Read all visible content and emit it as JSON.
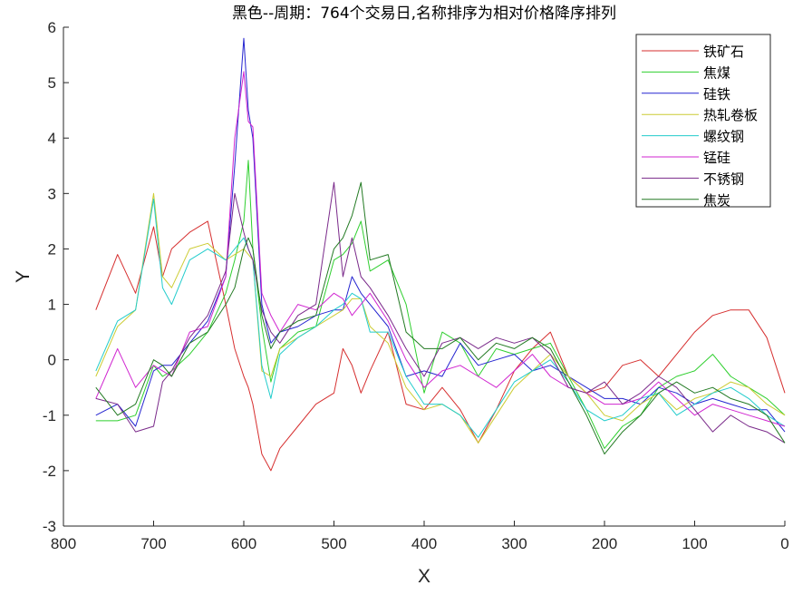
{
  "chart_data": {
    "type": "line",
    "title": "黑色--周期：764个交易日,名称排序为相对价格降序排列",
    "xlabel": "X",
    "ylabel": "Y",
    "xlim": [
      800,
      0
    ],
    "x_reversed": true,
    "ylim": [
      -3,
      6
    ],
    "xticks": [
      "800",
      "700",
      "600",
      "500",
      "400",
      "300",
      "200",
      "100",
      "0"
    ],
    "yticks": [
      "-3",
      "-2",
      "-1",
      "0",
      "1",
      "2",
      "3",
      "4",
      "5",
      "6"
    ],
    "grid": false,
    "legend_position": "top-right",
    "x": [
      764,
      740,
      720,
      700,
      690,
      680,
      660,
      640,
      620,
      610,
      600,
      595,
      590,
      580,
      570,
      560,
      540,
      520,
      500,
      490,
      480,
      470,
      460,
      440,
      420,
      400,
      380,
      360,
      340,
      320,
      300,
      280,
      260,
      240,
      220,
      200,
      180,
      160,
      140,
      120,
      100,
      80,
      60,
      40,
      20,
      0
    ],
    "series": [
      {
        "name": "铁矿石",
        "color": "#d62f2f",
        "values": [
          0.9,
          1.9,
          1.2,
          2.4,
          1.5,
          2.0,
          2.3,
          2.5,
          1.0,
          0.2,
          -0.3,
          -0.5,
          -0.8,
          -1.7,
          -2.0,
          -1.6,
          -1.2,
          -0.8,
          -0.6,
          0.2,
          -0.1,
          -0.6,
          -0.2,
          0.5,
          -0.8,
          -0.9,
          -0.5,
          -0.9,
          -1.5,
          -0.9,
          -0.2,
          0.2,
          0.5,
          -0.3,
          -0.6,
          -0.5,
          -0.1,
          0.0,
          -0.3,
          0.1,
          0.5,
          0.8,
          0.9,
          0.9,
          0.4,
          -0.6
        ]
      },
      {
        "name": "焦煤",
        "color": "#2fcf2f",
        "values": [
          -1.1,
          -1.1,
          -1.0,
          -0.1,
          -0.3,
          -0.2,
          0.1,
          0.5,
          1.2,
          1.8,
          2.5,
          3.6,
          2.0,
          0.6,
          -0.4,
          0.2,
          0.5,
          0.6,
          1.8,
          1.9,
          2.1,
          2.5,
          1.6,
          1.8,
          1.0,
          -0.6,
          0.5,
          0.3,
          -0.3,
          0.2,
          0.1,
          0.2,
          0.3,
          -0.3,
          -0.9,
          -1.6,
          -1.2,
          -1.0,
          -0.5,
          -0.3,
          -0.2,
          0.1,
          -0.3,
          -0.5,
          -0.7,
          -1.0
        ]
      },
      {
        "name": "硅铁",
        "color": "#2525d0",
        "values": [
          -1.0,
          -0.8,
          -1.2,
          -0.2,
          -0.1,
          -0.1,
          0.3,
          0.7,
          1.5,
          3.5,
          5.8,
          4.5,
          4.0,
          1.0,
          0.3,
          0.5,
          0.6,
          0.8,
          0.9,
          0.9,
          1.5,
          1.2,
          1.0,
          0.6,
          -0.3,
          -0.2,
          -0.3,
          0.3,
          -0.1,
          0.0,
          0.1,
          -0.2,
          -0.1,
          -0.3,
          -0.5,
          -0.7,
          -0.7,
          -0.8,
          -0.5,
          -0.6,
          -0.8,
          -0.7,
          -0.8,
          -0.9,
          -0.9,
          -1.3
        ]
      },
      {
        "name": "热轧卷板",
        "color": "#cccc33",
        "values": [
          -0.3,
          0.6,
          0.9,
          3.0,
          1.5,
          1.3,
          2.0,
          2.1,
          1.8,
          1.9,
          2.0,
          1.9,
          1.8,
          -0.2,
          -0.3,
          0.2,
          0.4,
          0.6,
          0.8,
          0.9,
          1.1,
          1.1,
          0.6,
          0.3,
          -0.5,
          -0.9,
          -0.8,
          -1.0,
          -1.5,
          -1.0,
          -0.5,
          -0.2,
          0.1,
          -0.3,
          -0.6,
          -1.0,
          -1.1,
          -0.8,
          -0.6,
          -0.9,
          -0.7,
          -0.6,
          -0.4,
          -0.5,
          -0.8,
          -1.0
        ]
      },
      {
        "name": "螺纹钢",
        "color": "#22cccc",
        "values": [
          -0.2,
          0.7,
          0.9,
          2.9,
          1.3,
          1.0,
          1.8,
          2.0,
          1.8,
          2.0,
          2.2,
          2.0,
          1.8,
          -0.1,
          -0.7,
          0.1,
          0.4,
          0.6,
          0.9,
          1.0,
          1.2,
          1.1,
          0.5,
          0.5,
          -0.3,
          -0.8,
          -0.8,
          -1.0,
          -1.4,
          -0.9,
          -0.4,
          -0.2,
          0.0,
          -0.4,
          -0.9,
          -1.1,
          -1.0,
          -0.7,
          -0.6,
          -1.0,
          -0.8,
          -0.6,
          -0.5,
          -0.7,
          -1.0,
          -1.2
        ]
      },
      {
        "name": "锰硅",
        "color": "#d025d0",
        "values": [
          -0.7,
          0.2,
          -0.5,
          -0.1,
          -0.2,
          -0.3,
          0.5,
          0.6,
          1.5,
          4.0,
          5.2,
          4.3,
          4.2,
          1.2,
          0.8,
          0.5,
          1.0,
          0.9,
          1.2,
          1.1,
          0.8,
          1.0,
          1.2,
          0.7,
          0.0,
          -0.5,
          -0.2,
          -0.1,
          -0.3,
          -0.5,
          -0.2,
          0.1,
          -0.3,
          -0.5,
          -0.6,
          -0.8,
          -0.8,
          -0.7,
          -0.4,
          -0.7,
          -1.0,
          -0.8,
          -0.9,
          -1.0,
          -1.1,
          -1.2
        ]
      },
      {
        "name": "不锈钢",
        "color": "#7a2a8a",
        "values": [
          -0.7,
          -0.8,
          -1.3,
          -1.2,
          -0.4,
          -0.2,
          0.4,
          0.8,
          1.6,
          3.0,
          2.3,
          2.0,
          1.8,
          0.9,
          0.5,
          0.3,
          0.8,
          1.0,
          3.2,
          1.5,
          2.2,
          1.5,
          1.3,
          0.8,
          0.2,
          -0.3,
          0.3,
          0.4,
          0.2,
          0.4,
          0.3,
          0.4,
          0.1,
          -0.5,
          -0.6,
          -0.4,
          -0.8,
          -0.6,
          -0.3,
          -0.5,
          -0.9,
          -1.3,
          -1.0,
          -1.2,
          -1.3,
          -1.5
        ]
      },
      {
        "name": "焦炭",
        "color": "#237a23",
        "values": [
          -0.5,
          -1.0,
          -0.8,
          0.0,
          -0.1,
          -0.3,
          0.3,
          0.5,
          1.0,
          1.3,
          2.0,
          2.2,
          2.0,
          0.8,
          0.2,
          0.5,
          0.7,
          0.8,
          2.0,
          2.2,
          2.6,
          3.2,
          1.8,
          1.9,
          0.5,
          0.2,
          0.2,
          0.4,
          0.0,
          0.3,
          0.2,
          0.4,
          0.2,
          -0.4,
          -1.0,
          -1.7,
          -1.3,
          -1.0,
          -0.6,
          -0.4,
          -0.6,
          -0.5,
          -0.7,
          -0.8,
          -1.0,
          -1.5
        ]
      }
    ]
  }
}
